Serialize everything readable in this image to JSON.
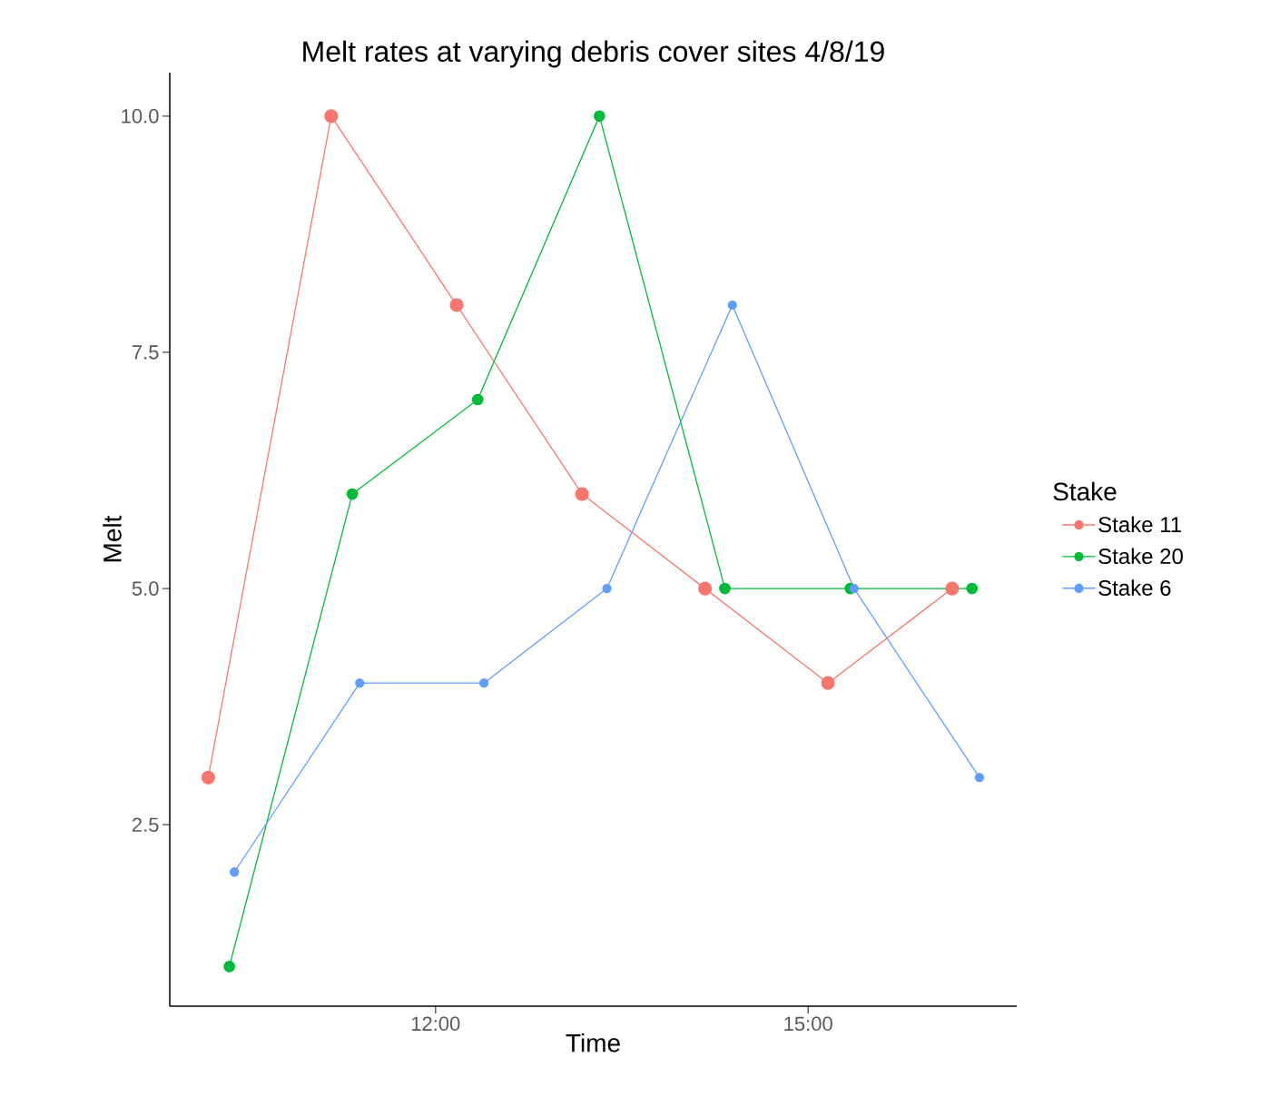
{
  "chart_data": {
    "type": "line",
    "title": "Melt rates at varying debris cover sites 4/8/19",
    "xlabel": "Time",
    "ylabel": "Melt",
    "legend_title": "Stake",
    "series": [
      {
        "name": "Stake 11",
        "color": "#f8766d",
        "x": [
          10.17,
          11.16,
          12.17,
          13.18,
          14.17,
          15.16,
          16.16
        ],
        "values": [
          3,
          10,
          8,
          6,
          5,
          4,
          5
        ]
      },
      {
        "name": "Stake 20",
        "color": "#00ba38",
        "x": [
          10.34,
          11.33,
          12.34,
          13.32,
          14.33,
          15.34,
          16.32
        ],
        "values": [
          1,
          6,
          7,
          10,
          5,
          5,
          5
        ]
      },
      {
        "name": "Stake 6",
        "color": "#619cff",
        "x": [
          10.38,
          11.39,
          12.39,
          13.38,
          14.39,
          15.37,
          16.38
        ],
        "values": [
          2,
          4,
          4,
          5,
          8,
          5,
          3
        ]
      }
    ],
    "xlim": [
      9.86,
      16.68
    ],
    "ylim": [
      0.58,
      10.46
    ],
    "xticks": [
      {
        "value": 12,
        "label": "12:00"
      },
      {
        "value": 15,
        "label": "15:00"
      }
    ],
    "yticks": [
      {
        "value": 2.5,
        "label": "2.5"
      },
      {
        "value": 5,
        "label": "5.0"
      },
      {
        "value": 7.5,
        "label": "7.5"
      },
      {
        "value": 10,
        "label": "10.0"
      }
    ],
    "legend": "right",
    "marker": "circle",
    "line_style": "solid",
    "grid": false
  }
}
